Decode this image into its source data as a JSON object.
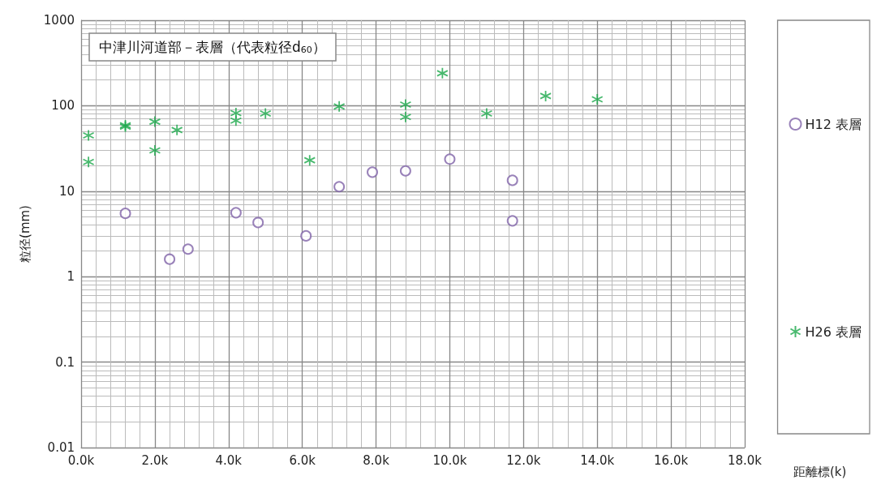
{
  "chart_data": {
    "type": "scatter",
    "title": "中津川河道部－表層（代表粒径d$_{60}$）",
    "xlabel": "距離標(k)",
    "ylabel": "粒径(mm)",
    "series": [
      {
        "name": "H12 表層",
        "color": "#7f63a8",
        "marker": "circle",
        "x": [
          1.2,
          2.4,
          2.9,
          4.2,
          4.8,
          6.1,
          7.0,
          7.9,
          8.8,
          10.0,
          11.7,
          11.7
        ],
        "values": [
          5.5,
          1.6,
          2.1,
          5.6,
          4.3,
          3.0,
          11.3,
          16.7,
          17.3,
          23.7,
          13.4,
          4.5
        ]
      },
      {
        "name": "H26 表層",
        "color": "#1aa84a",
        "marker": "cross",
        "x": [
          0.2,
          0.2,
          1.2,
          1.2,
          2.0,
          2.0,
          2.6,
          4.2,
          4.2,
          5.0,
          6.2,
          7.0,
          8.8,
          8.8,
          9.8,
          11.0,
          12.6,
          14.0
        ],
        "values": [
          45,
          22,
          59,
          57,
          65,
          30,
          52,
          82,
          67,
          81,
          23,
          98,
          103,
          74,
          240,
          81,
          130,
          119
        ]
      }
    ],
    "log": "y",
    "grid": true,
    "legend": "right",
    "xlim": [
      0,
      18
    ],
    "xticks": [
      {
        "value": 0,
        "label": "0.0k"
      },
      {
        "value": 2,
        "label": "2.0k"
      },
      {
        "value": 4,
        "label": "4.0k"
      },
      {
        "value": 6,
        "label": "6.0k"
      },
      {
        "value": 8,
        "label": "8.0k"
      },
      {
        "value": 10,
        "label": "10.0k"
      },
      {
        "value": 12,
        "label": "12.0k"
      },
      {
        "value": 14,
        "label": "14.0k"
      },
      {
        "value": 16,
        "label": "16.0k"
      },
      {
        "value": 18,
        "label": "18.0k"
      }
    ],
    "ylim": [
      0.01,
      1000
    ],
    "yticks": [
      0.01,
      0.1,
      1,
      10,
      100,
      1000
    ]
  }
}
